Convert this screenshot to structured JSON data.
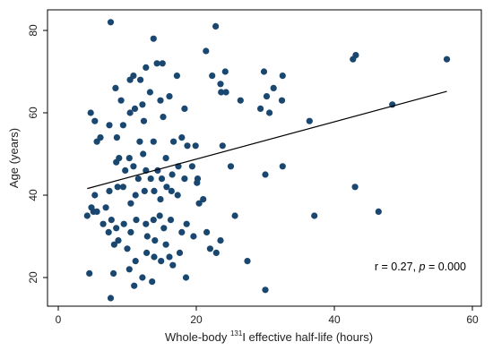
{
  "chart_data": {
    "type": "scatter",
    "xlabel_pre": "Whole-body ",
    "xlabel_sup": "131",
    "xlabel_post": "I effective half-life (hours)",
    "ylabel": "Age (years)",
    "xlim": [
      0,
      60
    ],
    "ylim": [
      13,
      84
    ],
    "x_ticks": [
      0,
      20,
      40,
      60
    ],
    "y_ticks": [
      20,
      40,
      60,
      80
    ],
    "grid": false,
    "annotation_r": "r = 0.27, ",
    "annotation_p_italic": "p",
    "annotation_p_value": " = 0.000",
    "colors": {
      "points": "#1a476f",
      "fit_line": "#000000",
      "frame": "#000000"
    },
    "fit_line": {
      "x": [
        4.2,
        56.3
      ],
      "y": [
        41.6,
        65.2
      ]
    },
    "points": [
      [
        7.6,
        82.0
      ],
      [
        13.8,
        78.0
      ],
      [
        22.8,
        81.0
      ],
      [
        21.4,
        75.0
      ],
      [
        14.3,
        72.0
      ],
      [
        15.1,
        72.0
      ],
      [
        12.7,
        71.0
      ],
      [
        17.2,
        69.0
      ],
      [
        22.3,
        69.0
      ],
      [
        23.5,
        67.0
      ],
      [
        24.2,
        70.0
      ],
      [
        23.6,
        65.0
      ],
      [
        24.3,
        65.0
      ],
      [
        29.8,
        70.0
      ],
      [
        30.2,
        64.0
      ],
      [
        31.2,
        66.0
      ],
      [
        32.5,
        69.0
      ],
      [
        30.6,
        60.0
      ],
      [
        29.3,
        61.0
      ],
      [
        32.4,
        63.0
      ],
      [
        26.4,
        63.0
      ],
      [
        36.4,
        58.0
      ],
      [
        42.7,
        73.0
      ],
      [
        43.1,
        74.0
      ],
      [
        56.3,
        73.0
      ],
      [
        48.4,
        62.0
      ],
      [
        8.3,
        66.0
      ],
      [
        9.1,
        63.0
      ],
      [
        10.4,
        68.0
      ],
      [
        10.9,
        69.0
      ],
      [
        11.9,
        68.0
      ],
      [
        13.3,
        65.0
      ],
      [
        14.8,
        63.0
      ],
      [
        16.1,
        64.0
      ],
      [
        12.2,
        62.0
      ],
      [
        11.1,
        61.0
      ],
      [
        10.4,
        60.0
      ],
      [
        9.4,
        57.0
      ],
      [
        8.5,
        54.0
      ],
      [
        7.4,
        57.0
      ],
      [
        5.6,
        53.0
      ],
      [
        6.1,
        54.0
      ],
      [
        5.3,
        58.0
      ],
      [
        4.7,
        60.0
      ],
      [
        12.4,
        58.0
      ],
      [
        15.2,
        59.0
      ],
      [
        18.3,
        61.0
      ],
      [
        16.7,
        53.0
      ],
      [
        17.9,
        54.0
      ],
      [
        18.7,
        52.0
      ],
      [
        19.9,
        52.0
      ],
      [
        23.8,
        52.0
      ],
      [
        13.8,
        53.0
      ],
      [
        11.8,
        53.0
      ],
      [
        12.3,
        50.0
      ],
      [
        15.6,
        49.0
      ],
      [
        16.5,
        45.0
      ],
      [
        17.4,
        47.0
      ],
      [
        18.3,
        44.0
      ],
      [
        19.4,
        47.0
      ],
      [
        20.2,
        44.0
      ],
      [
        20.1,
        43.0
      ],
      [
        25.0,
        47.0
      ],
      [
        32.5,
        47.0
      ],
      [
        30.0,
        45.0
      ],
      [
        43.0,
        42.0
      ],
      [
        8.4,
        48.0
      ],
      [
        8.8,
        49.0
      ],
      [
        9.7,
        46.0
      ],
      [
        10.3,
        49.0
      ],
      [
        10.9,
        47.0
      ],
      [
        11.6,
        44.0
      ],
      [
        12.7,
        46.0
      ],
      [
        13.4,
        44.0
      ],
      [
        14.4,
        46.0
      ],
      [
        15.0,
        44.0
      ],
      [
        15.7,
        42.0
      ],
      [
        16.4,
        41.0
      ],
      [
        17.3,
        40.0
      ],
      [
        13.9,
        41.0
      ],
      [
        14.8,
        39.0
      ],
      [
        12.5,
        41.0
      ],
      [
        11.2,
        40.0
      ],
      [
        10.5,
        38.0
      ],
      [
        9.4,
        42.0
      ],
      [
        8.6,
        42.0
      ],
      [
        7.4,
        41.0
      ],
      [
        6.9,
        37.0
      ],
      [
        5.3,
        40.0
      ],
      [
        5.1,
        36.0
      ],
      [
        4.8,
        37.0
      ],
      [
        4.2,
        35.0
      ],
      [
        5.6,
        36.0
      ],
      [
        6.5,
        33.0
      ],
      [
        7.7,
        34.0
      ],
      [
        8.4,
        32.0
      ],
      [
        9.5,
        33.0
      ],
      [
        10.5,
        31.0
      ],
      [
        11.3,
        34.0
      ],
      [
        12.7,
        33.0
      ],
      [
        13.8,
        34.0
      ],
      [
        14.7,
        35.0
      ],
      [
        15.3,
        32.0
      ],
      [
        16.3,
        34.0
      ],
      [
        17.9,
        31.0
      ],
      [
        18.6,
        33.0
      ],
      [
        19.6,
        30.0
      ],
      [
        20.4,
        38.0
      ],
      [
        21.0,
        39.0
      ],
      [
        21.5,
        31.0
      ],
      [
        23.5,
        29.0
      ],
      [
        25.6,
        35.0
      ],
      [
        37.1,
        35.0
      ],
      [
        46.4,
        36.0
      ],
      [
        12.9,
        30.0
      ],
      [
        14.0,
        29.0
      ],
      [
        15.6,
        28.0
      ],
      [
        8.7,
        29.0
      ],
      [
        7.3,
        31.0
      ],
      [
        8.1,
        28.0
      ],
      [
        10.0,
        27.0
      ],
      [
        11.2,
        24.0
      ],
      [
        12.8,
        26.0
      ],
      [
        13.9,
        25.0
      ],
      [
        14.9,
        24.0
      ],
      [
        16.1,
        25.0
      ],
      [
        17.6,
        26.0
      ],
      [
        22.0,
        27.0
      ],
      [
        22.9,
        26.0
      ],
      [
        27.4,
        24.0
      ],
      [
        4.5,
        21.0
      ],
      [
        8.0,
        21.0
      ],
      [
        10.3,
        22.0
      ],
      [
        11.0,
        18.0
      ],
      [
        12.2,
        20.0
      ],
      [
        13.6,
        19.0
      ],
      [
        18.5,
        20.0
      ],
      [
        30.0,
        17.0
      ],
      [
        7.6,
        15.0
      ],
      [
        16.6,
        23.0
      ]
    ]
  }
}
